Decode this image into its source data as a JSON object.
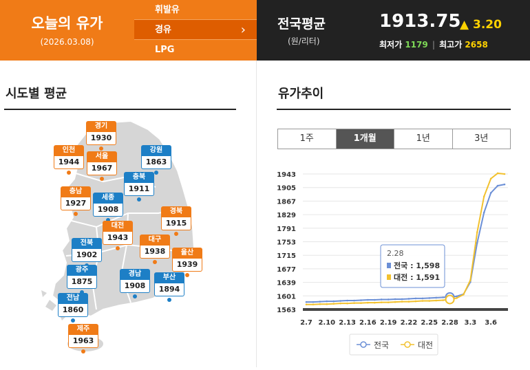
{
  "header": {
    "title": "오늘의 유가",
    "date": "(2026.03.08)",
    "fuel_types": [
      "휘발유",
      "경유",
      "LPG"
    ],
    "selected_fuel_index": 1,
    "national": {
      "label": "전국평균",
      "unit": "(원/리터)",
      "price": "1913.75",
      "change": "▲ 3.20",
      "min_label": "최저가",
      "min_value": "1179",
      "max_label": "최고가",
      "max_value": "2658"
    }
  },
  "left": {
    "title": "시도별 평균",
    "regions": [
      {
        "name": "경기",
        "value": "1930",
        "color": "orange"
      },
      {
        "name": "인천",
        "value": "1944",
        "color": "orange"
      },
      {
        "name": "서울",
        "value": "1967",
        "color": "orange"
      },
      {
        "name": "강원",
        "value": "1863",
        "color": "blue"
      },
      {
        "name": "충북",
        "value": "1911",
        "color": "blue"
      },
      {
        "name": "충남",
        "value": "1927",
        "color": "orange"
      },
      {
        "name": "세종",
        "value": "1908",
        "color": "blue"
      },
      {
        "name": "경북",
        "value": "1915",
        "color": "orange"
      },
      {
        "name": "대전",
        "value": "1943",
        "color": "orange"
      },
      {
        "name": "전북",
        "value": "1902",
        "color": "blue"
      },
      {
        "name": "대구",
        "value": "1938",
        "color": "orange"
      },
      {
        "name": "울산",
        "value": "1939",
        "color": "orange"
      },
      {
        "name": "광주",
        "value": "1875",
        "color": "blue"
      },
      {
        "name": "경남",
        "value": "1908",
        "color": "blue"
      },
      {
        "name": "부산",
        "value": "1894",
        "color": "blue"
      },
      {
        "name": "전남",
        "value": "1860",
        "color": "blue"
      },
      {
        "name": "제주",
        "value": "1963",
        "color": "orange"
      }
    ]
  },
  "right": {
    "title": "유가추이",
    "tabs": [
      "1주",
      "1개월",
      "1년",
      "3년"
    ],
    "selected_tab_index": 1
  },
  "chart_data": {
    "type": "line",
    "y_ticks": [
      "1943",
      "1905",
      "1867",
      "1829",
      "1791",
      "1753",
      "1715",
      "1677",
      "1639",
      "1601",
      "1563"
    ],
    "ylim": [
      1563,
      1943
    ],
    "x_tick_labels": [
      "2.7",
      "2.10",
      "2.13",
      "2.16",
      "2.19",
      "2.22",
      "2.25",
      "2.28",
      "3.3",
      "3.6"
    ],
    "x": [
      "2.7",
      "2.8",
      "2.9",
      "2.10",
      "2.11",
      "2.12",
      "2.13",
      "2.14",
      "2.15",
      "2.16",
      "2.17",
      "2.18",
      "2.19",
      "2.20",
      "2.21",
      "2.22",
      "2.23",
      "2.24",
      "2.25",
      "2.26",
      "2.27",
      "2.28",
      "3.1",
      "3.2",
      "3.3",
      "3.4",
      "3.5",
      "3.6",
      "3.7",
      "3.8"
    ],
    "series": [
      {
        "name": "전국",
        "color": "#6b8fd6",
        "values": [
          1584,
          1584,
          1585,
          1586,
          1586,
          1587,
          1588,
          1588,
          1589,
          1590,
          1590,
          1591,
          1591,
          1592,
          1592,
          1593,
          1594,
          1594,
          1595,
          1596,
          1597,
          1598,
          1600,
          1606,
          1640,
          1750,
          1835,
          1890,
          1910,
          1913.75
        ]
      },
      {
        "name": "대전",
        "color": "#f2c12e",
        "values": [
          1577,
          1577,
          1578,
          1578,
          1579,
          1580,
          1580,
          1581,
          1581,
          1582,
          1582,
          1583,
          1583,
          1584,
          1585,
          1585,
          1586,
          1587,
          1587,
          1588,
          1589,
          1591,
          1595,
          1605,
          1645,
          1780,
          1880,
          1930,
          1945,
          1943
        ]
      }
    ],
    "tooltip": {
      "date": "2.28",
      "rows": [
        {
          "label": "전국 : 1,598",
          "color": "#6b8fd6"
        },
        {
          "label": "대전 : 1,591",
          "color": "#f2c12e"
        }
      ]
    },
    "legend": [
      "전국",
      "대전"
    ],
    "legend_position": "bottom"
  }
}
